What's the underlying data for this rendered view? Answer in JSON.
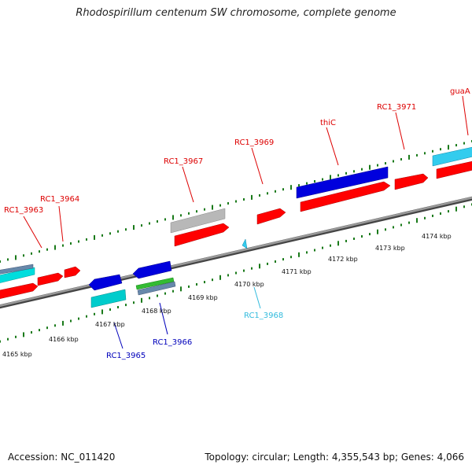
{
  "title": "Rhodospirillum centenum SW chromosome, complete genome",
  "footer": {
    "accession": "Accession: NC_011420",
    "summary": "Topology: circular; Length: 4,355,543 bp; Genes: 4,066"
  },
  "colors": {
    "backbone": "#777777",
    "tick": "#1a7a1a",
    "forward_label": "#dd0000",
    "reverse_cyan_label": "#33bbdd",
    "reverse_blue_label": "#0000bb",
    "red_feature": "#ff0000",
    "blue_feature": "#0000dd",
    "cyan_feature": "#00cccc",
    "lightblue_feature": "#33ccee",
    "gray_feature": "#b8b8b8",
    "green_feature": "#33bb33",
    "steel_feature": "#6688aa"
  },
  "scale_labels": [
    "4165 kbp",
    "4166 kbp",
    "4167 kbp",
    "4168 kbp",
    "4169 kbp",
    "4170 kbp",
    "4171 kbp",
    "4172 kbp",
    "4173 kbp",
    "4174 kbp"
  ],
  "gene_labels": [
    {
      "id": "rc1-3963",
      "text": "RC1_3963",
      "color": "#dd0000"
    },
    {
      "id": "rc1-3964",
      "text": "RC1_3964",
      "color": "#dd0000"
    },
    {
      "id": "rc1-3967",
      "text": "RC1_3967",
      "color": "#dd0000"
    },
    {
      "id": "rc1-3969",
      "text": "RC1_3969",
      "color": "#dd0000"
    },
    {
      "id": "thic",
      "text": "thiC",
      "color": "#dd0000"
    },
    {
      "id": "rc1-3971",
      "text": "RC1_3971",
      "color": "#dd0000"
    },
    {
      "id": "guaa",
      "text": "guaA",
      "color": "#dd0000"
    },
    {
      "id": "rc1-3968",
      "text": "RC1_3968",
      "color": "#33bbdd"
    },
    {
      "id": "rc1-3966",
      "text": "RC1_3966",
      "color": "#0000bb"
    },
    {
      "id": "rc1-3965",
      "text": "RC1_3965",
      "color": "#0000bb"
    }
  ]
}
